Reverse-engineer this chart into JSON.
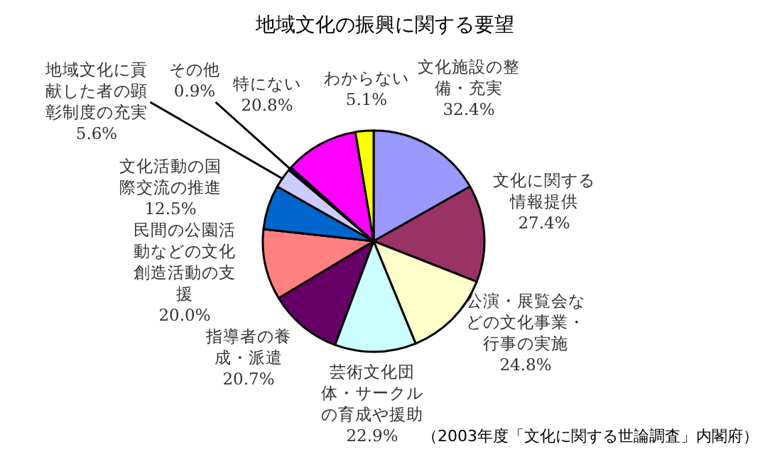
{
  "chart_data": {
    "type": "pie",
    "title": "地域文化の振興に関する要望",
    "categories": [
      "文化施設の整備・充実",
      "文化に関する情報提供",
      "公演・展覧会などの文化事業・行事の実施",
      "芸術文化団体・サークルの育成や援助",
      "指導者の養成・派遣",
      "民間の公園活動などの文化創造活動の支援",
      "文化活動の国際交流の推進",
      "地域文化に貢献した者の顕彰制度の充実",
      "その他",
      "特にない",
      "わからない"
    ],
    "values": [
      32.4,
      27.4,
      24.8,
      22.9,
      20.7,
      20.0,
      12.5,
      5.6,
      0.9,
      20.8,
      5.1
    ],
    "value_labels": [
      "32.4%",
      "27.4%",
      "24.8%",
      "22.9%",
      "20.7%",
      "20.0%",
      "12.5%",
      "5.6%",
      "0.9%",
      "20.8%",
      "5.1%"
    ],
    "colors": [
      "#9999ff",
      "#993366",
      "#ffffcc",
      "#ccffff",
      "#660066",
      "#ff8080",
      "#0066cc",
      "#ccccff",
      "#000080",
      "#ff00ff",
      "#ffff00"
    ],
    "annotations": [
      "（2003年度「文化に関する世論調査」内閣府）"
    ]
  }
}
